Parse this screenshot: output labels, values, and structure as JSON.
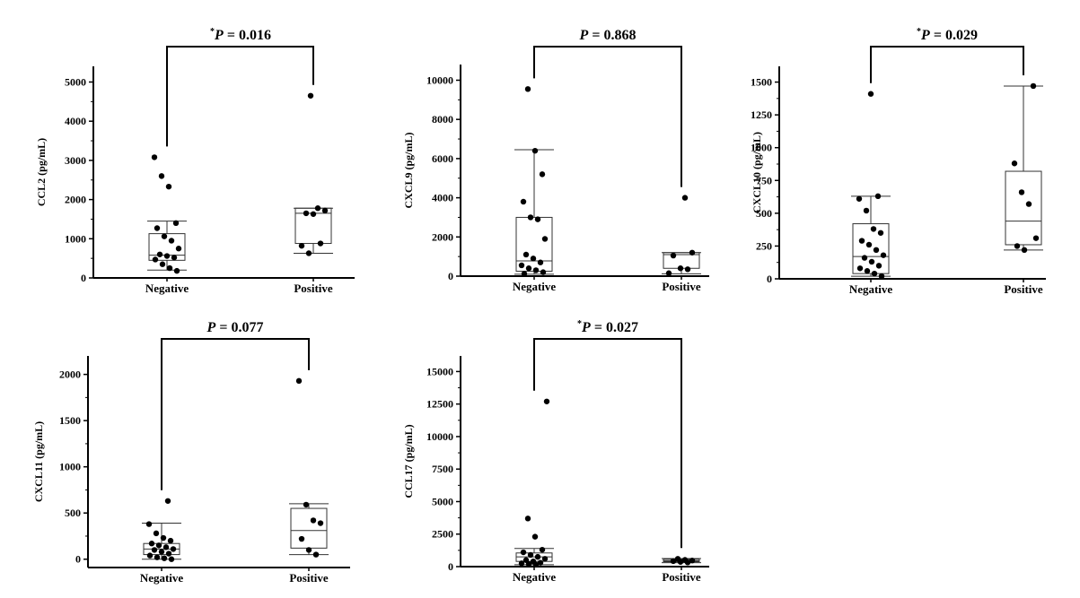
{
  "chart_data": [
    {
      "type": "box",
      "ylabel": "CCL2  (pg/mL)",
      "yticks": [
        0,
        1000,
        2000,
        3000,
        4000,
        5000
      ],
      "ylim": [
        0,
        5400
      ],
      "categories": [
        "Negative",
        "Positive"
      ],
      "p_label": {
        "prefix": "*",
        "p": "P",
        "text": " = 0.016"
      },
      "boxes": [
        {
          "whisker_low": 200,
          "q1": 450,
          "median": 580,
          "q3": 1130,
          "whisker_high": 1450
        },
        {
          "whisker_low": 630,
          "q1": 880,
          "median": 1650,
          "q3": 1780,
          "whisker_high": 1780
        }
      ],
      "points": [
        [
          3080,
          2600,
          2330,
          1400,
          1270,
          1060,
          950,
          750,
          600,
          560,
          520,
          470,
          350,
          250,
          180
        ],
        [
          4650,
          1780,
          1720,
          1650,
          1630,
          880,
          820,
          630
        ]
      ]
    },
    {
      "type": "box",
      "ylabel": "CXCL9  (pg/mL)",
      "yticks": [
        0,
        2000,
        4000,
        6000,
        8000,
        10000
      ],
      "ylim": [
        0,
        10800
      ],
      "categories": [
        "Negative",
        "Positive"
      ],
      "p_label": {
        "prefix": "",
        "p": "P",
        "text": " = 0.868"
      },
      "boxes": [
        {
          "whisker_low": 100,
          "q1": 250,
          "median": 780,
          "q3": 3000,
          "whisker_high": 6450
        },
        {
          "whisker_low": 120,
          "q1": 400,
          "median": 1100,
          "q3": 1200,
          "whisker_high": 1200
        }
      ],
      "points": [
        [
          9550,
          6400,
          5200,
          3800,
          3000,
          2900,
          1900,
          1100,
          900,
          700,
          550,
          400,
          300,
          200,
          120
        ],
        [
          4000,
          1200,
          1050,
          400,
          350,
          150
        ]
      ]
    },
    {
      "type": "box",
      "ylabel": "CXCL10  (pg/mL)",
      "yticks": [
        0,
        250,
        500,
        750,
        1000,
        1250,
        1500
      ],
      "ylim": [
        0,
        1620
      ],
      "categories": [
        "Negative",
        "Positive"
      ],
      "p_label": {
        "prefix": "*",
        "p": "P",
        "text": " = 0.029"
      },
      "boxes": [
        {
          "whisker_low": 20,
          "q1": 40,
          "median": 170,
          "q3": 420,
          "whisker_high": 630
        },
        {
          "whisker_low": 220,
          "q1": 260,
          "median": 440,
          "q3": 820,
          "whisker_high": 1470
        }
      ],
      "points": [
        [
          1410,
          630,
          610,
          520,
          380,
          350,
          290,
          260,
          220,
          180,
          160,
          130,
          100,
          80,
          60,
          40,
          20
        ],
        [
          1470,
          880,
          660,
          570,
          310,
          250,
          220
        ]
      ]
    },
    {
      "type": "box",
      "ylabel": "CXCL11  (pg/mL)",
      "yticks": [
        0,
        500,
        1000,
        1500,
        2000
      ],
      "ylim": [
        -90,
        2200
      ],
      "categories": [
        "Negative",
        "Positive"
      ],
      "p_label": {
        "prefix": "",
        "p": "P",
        "text": " = 0.077"
      },
      "boxes": [
        {
          "whisker_low": 0,
          "q1": 50,
          "median": 110,
          "q3": 170,
          "whisker_high": 390
        },
        {
          "whisker_low": 50,
          "q1": 120,
          "median": 310,
          "q3": 550,
          "whisker_high": 600
        }
      ],
      "points": [
        [
          630,
          380,
          280,
          230,
          200,
          170,
          150,
          130,
          110,
          100,
          80,
          60,
          40,
          20,
          10,
          0
        ],
        [
          1930,
          590,
          420,
          390,
          220,
          100,
          50
        ]
      ]
    },
    {
      "type": "box",
      "ylabel": "CCL17  (pg/mL)",
      "yticks": [
        0,
        2500,
        5000,
        7500,
        10000,
        12500,
        15000
      ],
      "ylim": [
        0,
        16200
      ],
      "categories": [
        "Negative",
        "Positive"
      ],
      "p_label": {
        "prefix": "*",
        "p": "P",
        "text": " = 0.027"
      },
      "boxes": [
        {
          "whisker_low": 150,
          "q1": 400,
          "median": 750,
          "q3": 1050,
          "whisker_high": 1400
        },
        {
          "whisker_low": 300,
          "q1": 380,
          "median": 450,
          "q3": 560,
          "whisker_high": 620
        }
      ],
      "points": [
        [
          12700,
          3700,
          2300,
          1300,
          1100,
          900,
          750,
          600,
          500,
          400,
          300,
          250,
          200,
          150
        ],
        [
          600,
          520,
          470,
          420,
          360,
          320
        ]
      ]
    }
  ]
}
